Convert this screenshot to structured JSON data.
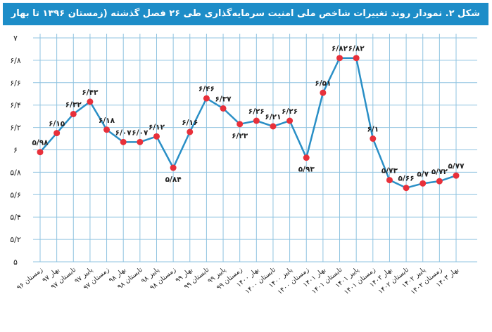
{
  "chart_data": {
    "type": "line",
    "title": "شکل ۲. نمودار روند تغییرات شاخص ملی امنیت سرمایه‌گذاری طی ۲۶ فصل گذشته (زمستان ۱۳۹۶ تا بهار ۱۴۰۳)",
    "categories": [
      "زمستان ۹۶",
      "بهار ۹۷",
      "تابستان ۹۷",
      "پاییز ۹۷",
      "زمستان ۹۷",
      "بهار ۹۸",
      "تابستان ۹۸",
      "پاییز ۹۸",
      "زمستان ۹۸",
      "بهار ۹۹",
      "تابستان ۹۹",
      "پاییز ۹۹",
      "زمستان ۹۹",
      "بهار ۱۴۰۰",
      "تابستان ۱۴۰۰",
      "پاییز ۱۴۰۰",
      "زمستان ۱۴۰۰",
      "بهار ۱۴۰۱",
      "تابستان ۱۴۰۱",
      "پاییز ۱۴۰۱",
      "زمستان ۱۴۰۱",
      "بهار ۱۴۰۲",
      "تابستان ۱۴۰۲",
      "پاییز ۱۴۰۲",
      "زمستان ۱۴۰۲",
      "بهار ۱۴۰۳"
    ],
    "values": [
      5.98,
      6.15,
      6.32,
      6.43,
      6.18,
      6.07,
      6.07,
      6.12,
      5.84,
      6.16,
      6.46,
      6.37,
      6.23,
      6.26,
      6.21,
      6.26,
      5.93,
      6.51,
      6.82,
      6.82,
      6.1,
      5.73,
      5.66,
      5.7,
      5.72,
      5.77
    ],
    "value_labels": [
      "۵/۹۸",
      "۶/۱۵",
      "۶/۳۲",
      "۶/۴۳",
      "۶/۱۸",
      "۶/۰۷",
      "۶/۰۷",
      "۶/۱۲",
      "۵/۸۴",
      "۶/۱۶",
      "۶/۴۶",
      "۶/۳۷",
      "۶/۲۳",
      "۶/۲۶",
      "۶/۲۱",
      "۶/۲۶",
      "۵/۹۳",
      "۶/۵۱",
      "۶/۸۲",
      "۶/۸۲",
      "۶/۱",
      "۵/۷۳",
      "۵/۶۶",
      "۵/۷",
      "۵/۷۲",
      "۵/۷۷"
    ],
    "label_positions": [
      "above",
      "above",
      "above",
      "above",
      "above",
      "above",
      "above",
      "above",
      "below",
      "above",
      "above",
      "above",
      "below",
      "above",
      "above",
      "above",
      "below",
      "above",
      "above",
      "above",
      "above",
      "above",
      "above",
      "above",
      "above",
      "above"
    ],
    "ylim": [
      5,
      7
    ],
    "yticks": [
      5,
      5.2,
      5.4,
      5.6,
      5.8,
      6,
      6.2,
      6.4,
      6.6,
      6.8,
      7
    ],
    "ytick_labels": [
      "۵",
      "۵/۲",
      "۵/۴",
      "۵/۶",
      "۵/۸",
      "۶",
      "۶/۲",
      "۶/۴",
      "۶/۶",
      "۶/۸",
      "۷"
    ],
    "grid": true,
    "line_color": "#2a8fc6",
    "marker_color": "#e8303a",
    "grid_color": "#8fc3e0",
    "title_bg": "#1d8dc8"
  }
}
